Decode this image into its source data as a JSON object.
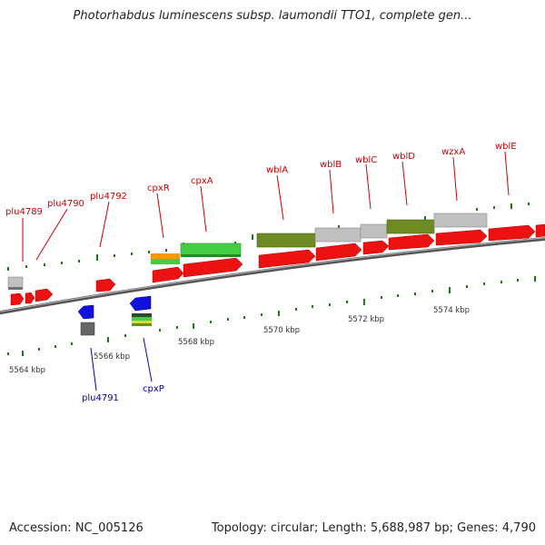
{
  "title": "Photorhabdus luminescens subsp. laumondii TTO1, complete gen...",
  "accession": "Accession: NC_005126",
  "summary": "Topology: circular; Length: 5,688,987 bp; Genes: 4,790",
  "colors": {
    "cds_forward": "#ee1111",
    "gene_grey": "#c0c0c0",
    "gene_olive": "#6e8a23",
    "gene_green": "#44cc44",
    "gene_orange": "#ff9900",
    "cds_reverse": "#1111dd",
    "tick": "#1a7a1a",
    "label_forward": "#cc0000",
    "label_reverse": "#0000aa"
  },
  "scale_labels": [
    "5564 kbp",
    "5566 kbp",
    "5568 kbp",
    "5570 kbp",
    "5572 kbp",
    "5574 kbp"
  ],
  "forward_gene_labels": [
    "plu4789",
    "plu4790",
    "plu4792",
    "cpxR",
    "cpxA",
    "wblA",
    "wblB",
    "wblC",
    "wblD",
    "wzxA",
    "wblE"
  ],
  "reverse_gene_labels": [
    "plu4791",
    "cpxP"
  ]
}
